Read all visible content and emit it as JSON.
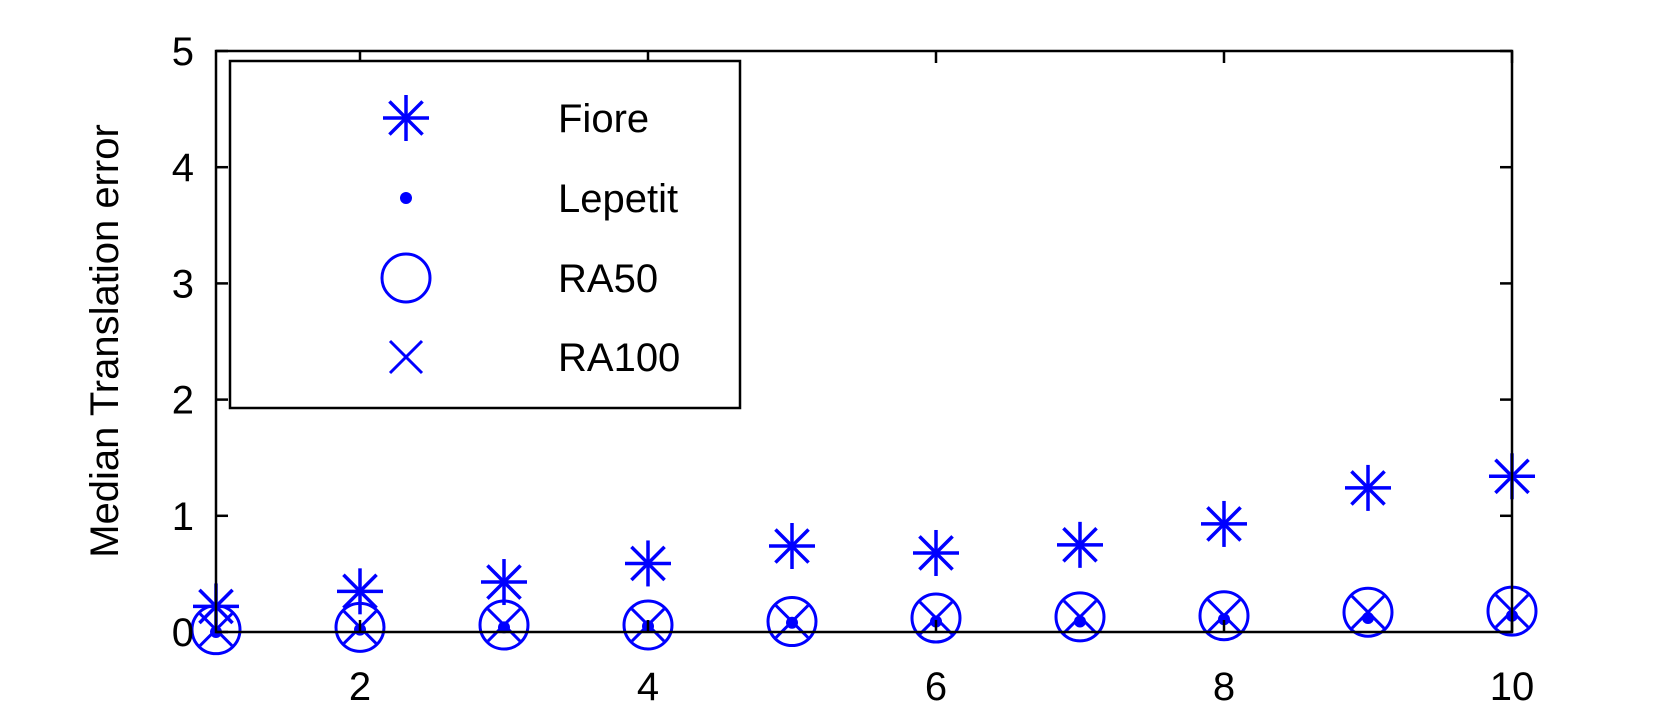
{
  "chart_data": {
    "type": "scatter",
    "title": "",
    "xlabel": "",
    "ylabel": "Median Translation error",
    "xlim": [
      1,
      10
    ],
    "ylim": [
      0,
      5
    ],
    "xticks": [
      2,
      4,
      6,
      8,
      10
    ],
    "yticks": [
      0,
      1,
      2,
      3,
      4,
      5
    ],
    "grid": false,
    "legend_position": "top-left",
    "x": [
      1,
      2,
      3,
      4,
      5,
      6,
      7,
      8,
      9,
      10
    ],
    "series": [
      {
        "name": "Fiore",
        "marker": "star",
        "values": [
          0.22,
          0.35,
          0.43,
          0.59,
          0.74,
          0.68,
          0.75,
          0.93,
          1.24,
          1.34
        ]
      },
      {
        "name": "Lepetit",
        "marker": "dot",
        "values": [
          0.0,
          0.02,
          0.04,
          0.05,
          0.08,
          0.09,
          0.09,
          0.11,
          0.12,
          0.14
        ]
      },
      {
        "name": "RA50",
        "marker": "circle",
        "values": [
          0.02,
          0.04,
          0.06,
          0.06,
          0.09,
          0.12,
          0.13,
          0.14,
          0.17,
          0.18
        ]
      },
      {
        "name": "RA100",
        "marker": "x",
        "values": [
          0.02,
          0.04,
          0.06,
          0.06,
          0.09,
          0.12,
          0.13,
          0.14,
          0.17,
          0.18
        ]
      }
    ],
    "colors": {
      "marker": "#0000ff",
      "axis": "#000000"
    }
  }
}
